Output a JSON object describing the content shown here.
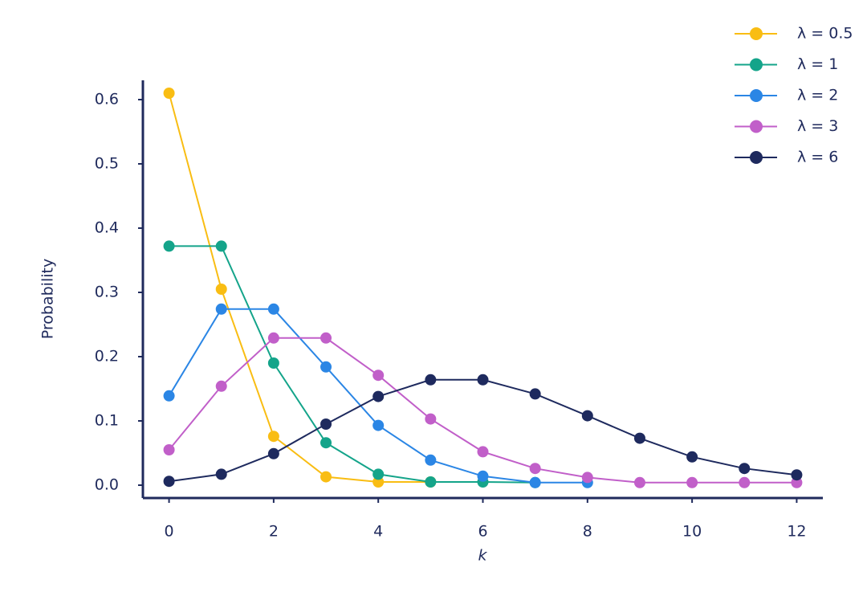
{
  "chart_data": {
    "type": "line",
    "y_label": "Probability",
    "x_label": "k",
    "xlim": [
      -0.5,
      12.5
    ],
    "ylim": [
      -0.02,
      0.63
    ],
    "xticks": [
      0,
      2,
      4,
      6,
      8,
      10,
      12
    ],
    "yticks": [
      {
        "value": 0,
        "label": "0.0"
      },
      0.1,
      0.2,
      0.3,
      0.4,
      0.5,
      0.6
    ],
    "grid": false,
    "legend": "top-right",
    "axis_color": "#1f2a5c",
    "series": [
      {
        "name": "λ = 0.5",
        "color": "#f9bd13",
        "x": [
          0,
          1,
          2,
          3,
          4,
          5
        ],
        "values": [
          0.61,
          0.305,
          0.076,
          0.013,
          0.005,
          0.005
        ]
      },
      {
        "name": "λ = 1",
        "color": "#14a48a",
        "x": [
          0,
          1,
          2,
          3,
          4,
          5,
          6,
          7
        ],
        "values": [
          0.372,
          0.372,
          0.19,
          0.066,
          0.017,
          0.005,
          0.005,
          0.004
        ]
      },
      {
        "name": "λ = 2",
        "color": "#2b86e5",
        "x": [
          0,
          1,
          2,
          3,
          4,
          5,
          6,
          7,
          8
        ],
        "values": [
          0.139,
          0.274,
          0.274,
          0.184,
          0.093,
          0.039,
          0.014,
          0.004,
          0.004
        ]
      },
      {
        "name": "λ = 3",
        "color": "#c15fc9",
        "x": [
          0,
          1,
          2,
          3,
          4,
          5,
          6,
          7,
          8,
          9,
          10,
          11,
          12
        ],
        "values": [
          0.055,
          0.154,
          0.229,
          0.229,
          0.171,
          0.103,
          0.052,
          0.026,
          0.012,
          0.004,
          0.004,
          0.004,
          0.004
        ]
      },
      {
        "name": "λ = 6",
        "color": "#1e2a5e",
        "x": [
          0,
          1,
          2,
          3,
          4,
          5,
          6,
          7,
          8,
          9,
          10,
          11,
          12
        ],
        "values": [
          0.006,
          0.017,
          0.049,
          0.095,
          0.138,
          0.164,
          0.164,
          0.142,
          0.108,
          0.073,
          0.044,
          0.026,
          0.016
        ]
      }
    ]
  }
}
